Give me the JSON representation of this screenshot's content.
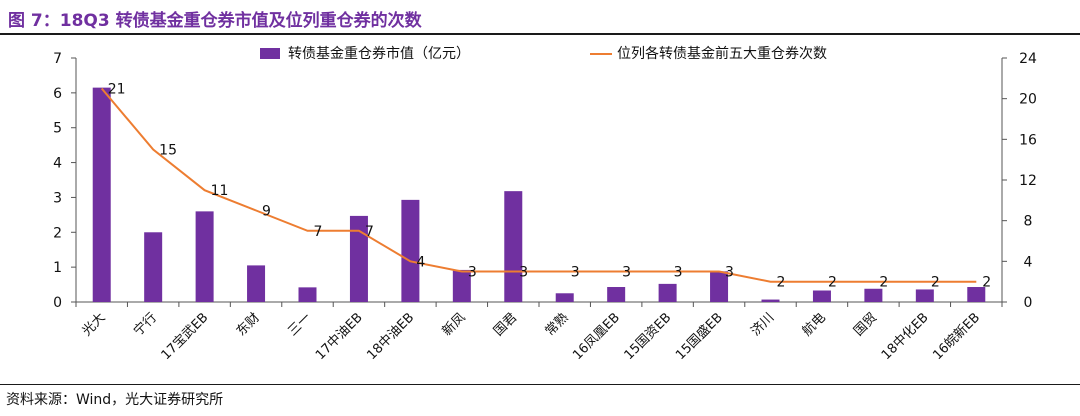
{
  "header": {
    "title": "图 7：18Q3 转债基金重仓券市值及位列重仓券的次数"
  },
  "footer": {
    "source": "资料来源：Wind，光大证券研究所"
  },
  "colors": {
    "bar": "#7030A0",
    "line": "#ED7D31",
    "title": "#7030A0"
  },
  "chart_data": {
    "type": "bar",
    "categories": [
      "光大",
      "宁行",
      "17宝武EB",
      "东财",
      "三一",
      "17中油EB",
      "18中油EB",
      "新凤",
      "国君",
      "常熟",
      "16凤凰EB",
      "15国资EB",
      "15国盛EB",
      "济川",
      "航电",
      "国贸",
      "18中化EB",
      "16皖新EB"
    ],
    "series": [
      {
        "name": "转债基金重仓券市值（亿元）",
        "type": "bar",
        "axis": "left",
        "values": [
          6.15,
          2.0,
          2.6,
          1.05,
          0.42,
          2.47,
          2.93,
          0.92,
          3.18,
          0.25,
          0.43,
          0.52,
          0.88,
          0.07,
          0.33,
          0.38,
          0.36,
          0.43
        ]
      },
      {
        "name": "位列各转债基金前五大重仓券次数",
        "type": "line",
        "axis": "right",
        "values": [
          21,
          15,
          11,
          9,
          7,
          7,
          4,
          3,
          3,
          3,
          3,
          3,
          3,
          2,
          2,
          2,
          2,
          2
        ]
      }
    ],
    "line_labels": [
      "21",
      "15",
      "11",
      "9",
      "7",
      "7",
      "4",
      "3",
      "3",
      "3",
      "3",
      "3",
      "3",
      "2",
      "2",
      "2",
      "2",
      "2"
    ],
    "y_left": {
      "min": 0,
      "max": 7,
      "ticks": [
        "0",
        "1",
        "2",
        "3",
        "4",
        "5",
        "6",
        "7"
      ]
    },
    "y_right": {
      "min": 0,
      "max": 24,
      "ticks": [
        "0",
        "4",
        "8",
        "12",
        "16",
        "20",
        "24"
      ]
    },
    "legend_position": "top-center",
    "grid": false
  }
}
